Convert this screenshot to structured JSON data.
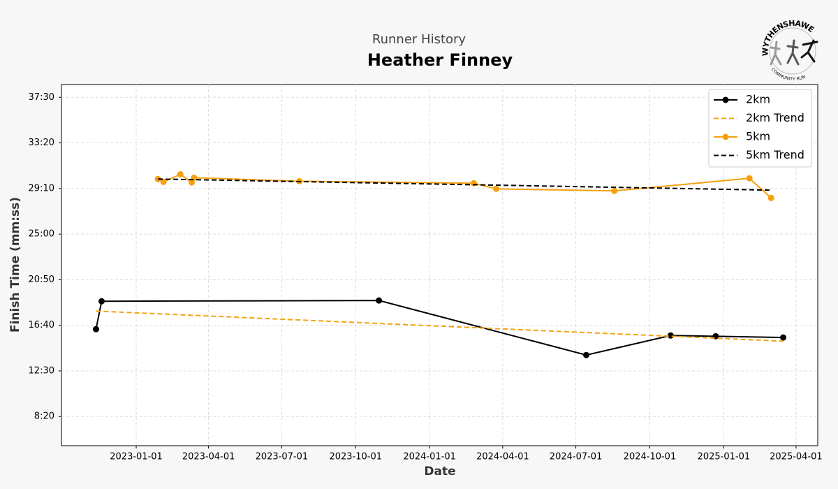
{
  "chart_data": {
    "type": "line",
    "subtitle": "Runner History",
    "title": "Heather Finney",
    "xlabel": "Date",
    "ylabel": "Finish Time (mm:ss)",
    "logo": {
      "top": "WYTHENSHAWE",
      "bottom": "COMMUNITY RUN"
    },
    "xlim": [
      "2022-09-30",
      "2025-04-28"
    ],
    "xticks": [
      "2023-01-01",
      "2023-04-01",
      "2023-07-01",
      "2023-10-01",
      "2024-01-01",
      "2024-04-01",
      "2024-07-01",
      "2024-10-01",
      "2025-01-01",
      "2025-04-01"
    ],
    "ylim": [
      340,
      2320
    ],
    "yticks": [
      {
        "value": 500,
        "label": "8:20"
      },
      {
        "value": 750,
        "label": "12:30"
      },
      {
        "value": 1000,
        "label": "16:40"
      },
      {
        "value": 1250,
        "label": "20:50"
      },
      {
        "value": 1500,
        "label": "25:00"
      },
      {
        "value": 1750,
        "label": "29:10"
      },
      {
        "value": 2000,
        "label": "33:20"
      },
      {
        "value": 2250,
        "label": "37:30"
      }
    ],
    "grid": true,
    "legend": "upper right",
    "series": [
      {
        "name": "2km",
        "color": "#000000",
        "style": "solid",
        "marker": true,
        "x": [
          "2022-11-12",
          "2022-11-19",
          "2023-10-30",
          "2024-07-14",
          "2024-10-27",
          "2024-12-22",
          "2025-03-16"
        ],
        "values": [
          979,
          1132,
          1136,
          837,
          944,
          940,
          933
        ]
      },
      {
        "name": "2km Trend",
        "color": "#f5a10f",
        "style": "dashed",
        "marker": false,
        "x": [
          "2022-11-12",
          "2025-03-16"
        ],
        "values": [
          1078,
          913
        ]
      },
      {
        "name": "5km",
        "color": "#f5a10f",
        "style": "solid",
        "marker": true,
        "x": [
          "2023-01-28",
          "2023-02-04",
          "2023-02-25",
          "2023-03-11",
          "2023-03-14",
          "2023-07-23",
          "2024-02-25",
          "2024-03-24",
          "2024-08-18",
          "2025-02-02",
          "2025-03-01"
        ],
        "values": [
          1802,
          1786,
          1828,
          1783,
          1809,
          1790,
          1779,
          1748,
          1737,
          1806,
          1698
        ]
      },
      {
        "name": "5km Trend",
        "color": "#000000",
        "style": "dashed",
        "marker": false,
        "x": [
          "2023-01-28",
          "2025-03-01"
        ],
        "values": [
          1802,
          1741
        ]
      }
    ]
  }
}
